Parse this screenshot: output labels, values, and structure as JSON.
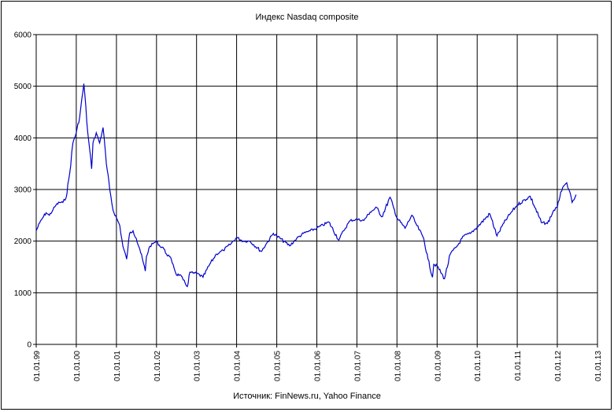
{
  "chart_data": {
    "type": "line",
    "title": "Индекс Nasdaq composite",
    "source": "Источник: FinNews.ru, Yahoo Finance",
    "xlabel": "",
    "ylabel": "",
    "ylim": [
      0,
      6000
    ],
    "yticks": [
      "0",
      "1000",
      "2000",
      "3000",
      "4000",
      "5000",
      "6000"
    ],
    "xticks": [
      "01.01.99",
      "01.01.00",
      "01.01.01",
      "01.01.02",
      "01.01.03",
      "01.01.04",
      "01.01.05",
      "01.01.06",
      "01.01.07",
      "01.01.08",
      "01.01.09",
      "01.01.10",
      "01.01.11",
      "01.01.12",
      "01.01.13"
    ],
    "grid": true,
    "legend": "none",
    "line_color": "#0000cc",
    "series": [
      {
        "x": [
          "1999-01-01",
          "1999-02-01",
          "1999-03-01",
          "1999-04-01",
          "1999-05-01",
          "1999-06-01",
          "1999-07-01",
          "1999-08-01",
          "1999-09-01",
          "1999-10-01",
          "1999-11-01",
          "1999-12-01",
          "2000-01-01",
          "2000-02-01",
          "2000-03-10",
          "2000-04-15",
          "2000-05-20",
          "2000-06-01",
          "2000-07-01",
          "2000-08-01",
          "2000-09-01",
          "2000-10-01",
          "2000-11-01",
          "2000-12-01",
          "2001-01-01",
          "2001-02-01",
          "2001-03-01",
          "2001-04-04",
          "2001-05-01",
          "2001-06-01",
          "2001-07-01",
          "2001-08-01",
          "2001-09-21",
          "2001-10-01",
          "2001-11-01",
          "2001-12-01",
          "2002-01-01",
          "2002-02-01",
          "2002-03-01",
          "2002-04-01",
          "2002-05-01",
          "2002-06-01",
          "2002-07-01",
          "2002-08-01",
          "2002-09-01",
          "2002-10-09",
          "2002-11-01",
          "2002-12-01",
          "2003-01-01",
          "2003-03-01",
          "2003-05-01",
          "2003-07-01",
          "2003-09-01",
          "2003-11-01",
          "2004-01-01",
          "2004-03-01",
          "2004-05-01",
          "2004-08-13",
          "2004-10-01",
          "2004-12-01",
          "2005-01-01",
          "2005-04-28",
          "2005-07-01",
          "2005-09-01",
          "2005-11-01",
          "2006-01-01",
          "2006-04-20",
          "2006-07-21",
          "2006-09-01",
          "2006-11-01",
          "2007-01-01",
          "2007-03-05",
          "2007-05-01",
          "2007-07-01",
          "2007-08-15",
          "2007-10-31",
          "2007-12-01",
          "2008-01-01",
          "2008-03-15",
          "2008-05-15",
          "2008-07-01",
          "2008-09-01",
          "2008-10-10",
          "2008-11-20",
          "2008-12-01",
          "2009-01-01",
          "2009-03-09",
          "2009-05-01",
          "2009-07-01",
          "2009-09-01",
          "2009-11-01",
          "2010-01-01",
          "2010-04-26",
          "2010-07-01",
          "2010-09-01",
          "2010-11-01",
          "2011-01-01",
          "2011-04-29",
          "2011-08-08",
          "2011-10-03",
          "2011-12-01",
          "2012-01-01",
          "2012-02-01",
          "2012-03-27",
          "2012-04-15",
          "2012-05-15",
          "2012-06-01",
          "2012-06-20"
        ],
        "values": [
          2200,
          2350,
          2450,
          2550,
          2500,
          2600,
          2700,
          2750,
          2750,
          2850,
          3300,
          3900,
          4100,
          4400,
          5050,
          4100,
          3400,
          3900,
          4100,
          3900,
          4200,
          3500,
          3000,
          2600,
          2450,
          2300,
          1900,
          1650,
          2150,
          2200,
          2050,
          1850,
          1420,
          1700,
          1900,
          1950,
          2000,
          1900,
          1880,
          1750,
          1700,
          1550,
          1350,
          1350,
          1250,
          1120,
          1400,
          1380,
          1380,
          1300,
          1550,
          1750,
          1820,
          1930,
          2070,
          2000,
          2000,
          1800,
          1960,
          2150,
          2100,
          1910,
          2050,
          2150,
          2200,
          2250,
          2370,
          2020,
          2200,
          2400,
          2420,
          2400,
          2560,
          2650,
          2470,
          2850,
          2650,
          2450,
          2250,
          2500,
          2300,
          2050,
          1650,
          1300,
          1550,
          1520,
          1270,
          1750,
          1900,
          2100,
          2150,
          2270,
          2530,
          2100,
          2350,
          2540,
          2700,
          2870,
          2360,
          2340,
          2600,
          2650,
          2950,
          3130,
          3000,
          2750,
          2800,
          2900
        ]
      }
    ]
  }
}
